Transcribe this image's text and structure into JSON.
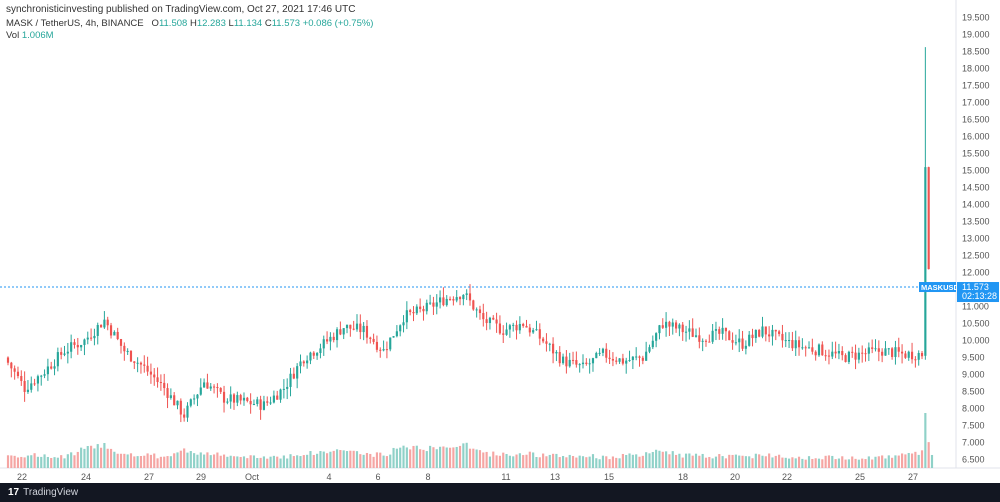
{
  "header": {
    "publisher": "synchronisticinvesting published on TradingView.com, Oct 27, 2021 17:46 UTC",
    "symbol": "MASK / TetherUS, 4h, BINANCE",
    "ohlc": {
      "o_label": "O",
      "o": "11.508",
      "h_label": "H",
      "h": "12.283",
      "l_label": "L",
      "l": "11.134",
      "c_label": "C",
      "c": "11.573",
      "change": "+0.086 (+0.75%)"
    },
    "vol_label": "Vol",
    "vol_value": "1.006M"
  },
  "footer": {
    "logo_mark": "17",
    "logo_text": "TradingView"
  },
  "price_tag": {
    "symbol": "MASKUSDT",
    "price": "11.573",
    "countdown": "02:13:28"
  },
  "colors": {
    "up": "#26a69a",
    "down": "#ef5350",
    "up_vol": "#8fd1c8",
    "down_vol": "#f5a5a3",
    "last_price": "#2196f3"
  },
  "chart_data": {
    "type": "candlestick",
    "interval": "4h",
    "ylim": [
      6.25,
      19.75
    ],
    "y_ticks": [
      "19.500",
      "19.000",
      "18.500",
      "18.000",
      "17.500",
      "17.000",
      "16.500",
      "16.000",
      "15.500",
      "15.000",
      "14.500",
      "14.000",
      "13.500",
      "13.000",
      "12.500",
      "12.000",
      "11.500",
      "11.000",
      "10.500",
      "10.000",
      "9.500",
      "9.000",
      "8.500",
      "8.000",
      "7.500",
      "7.000",
      "6.500"
    ],
    "x_ticks": [
      "22",
      "24",
      "27",
      "29",
      "Oct",
      "4",
      "6",
      "8",
      "11",
      "13",
      "15",
      "18",
      "20",
      "22",
      "25",
      "27"
    ],
    "last_price": 11.573,
    "anchors": [
      {
        "c": 9.5,
        "v": 1.5
      },
      {
        "c": 8.6,
        "v": 1.6
      },
      {
        "c": 9.1,
        "v": 1.4
      },
      {
        "c": 9.7,
        "v": 1.3
      },
      {
        "c": 10.0,
        "v": 2.6
      },
      {
        "c": 10.6,
        "v": 3.2
      },
      {
        "c": 9.7,
        "v": 1.6
      },
      {
        "c": 9.2,
        "v": 1.5
      },
      {
        "c": 8.6,
        "v": 1.4
      },
      {
        "c": 7.8,
        "v": 2.3
      },
      {
        "c": 8.8,
        "v": 1.9
      },
      {
        "c": 8.3,
        "v": 1.5
      },
      {
        "c": 8.2,
        "v": 1.2
      },
      {
        "c": 8.1,
        "v": 1.3
      },
      {
        "c": 8.6,
        "v": 1.4
      },
      {
        "c": 9.5,
        "v": 1.8
      },
      {
        "c": 9.9,
        "v": 2.0
      },
      {
        "c": 10.4,
        "v": 2.5
      },
      {
        "c": 10.3,
        "v": 1.7
      },
      {
        "c": 9.7,
        "v": 1.6
      },
      {
        "c": 10.7,
        "v": 3.0
      },
      {
        "c": 10.9,
        "v": 2.6
      },
      {
        "c": 11.2,
        "v": 2.7
      },
      {
        "c": 11.4,
        "v": 3.4
      },
      {
        "c": 10.6,
        "v": 1.8
      },
      {
        "c": 10.3,
        "v": 1.7
      },
      {
        "c": 10.5,
        "v": 1.9
      },
      {
        "c": 10.0,
        "v": 1.5
      },
      {
        "c": 9.4,
        "v": 1.4
      },
      {
        "c": 9.2,
        "v": 1.5
      },
      {
        "c": 9.6,
        "v": 1.3
      },
      {
        "c": 9.4,
        "v": 1.4
      },
      {
        "c": 9.5,
        "v": 1.6
      },
      {
        "c": 10.5,
        "v": 2.3
      },
      {
        "c": 10.3,
        "v": 1.6
      },
      {
        "c": 10.1,
        "v": 1.4
      },
      {
        "c": 10.2,
        "v": 1.5
      },
      {
        "c": 9.9,
        "v": 1.3
      },
      {
        "c": 10.3,
        "v": 1.7
      },
      {
        "c": 10.0,
        "v": 1.4
      },
      {
        "c": 9.8,
        "v": 1.3
      },
      {
        "c": 9.7,
        "v": 1.2
      },
      {
        "c": 9.5,
        "v": 1.2
      },
      {
        "c": 9.6,
        "v": 1.3
      },
      {
        "c": 9.7,
        "v": 1.3
      },
      {
        "c": 9.6,
        "v": 1.5
      },
      {
        "c": 9.6,
        "v": 2.0
      },
      {
        "c": 11.573,
        "v": 1.006
      }
    ]
  }
}
